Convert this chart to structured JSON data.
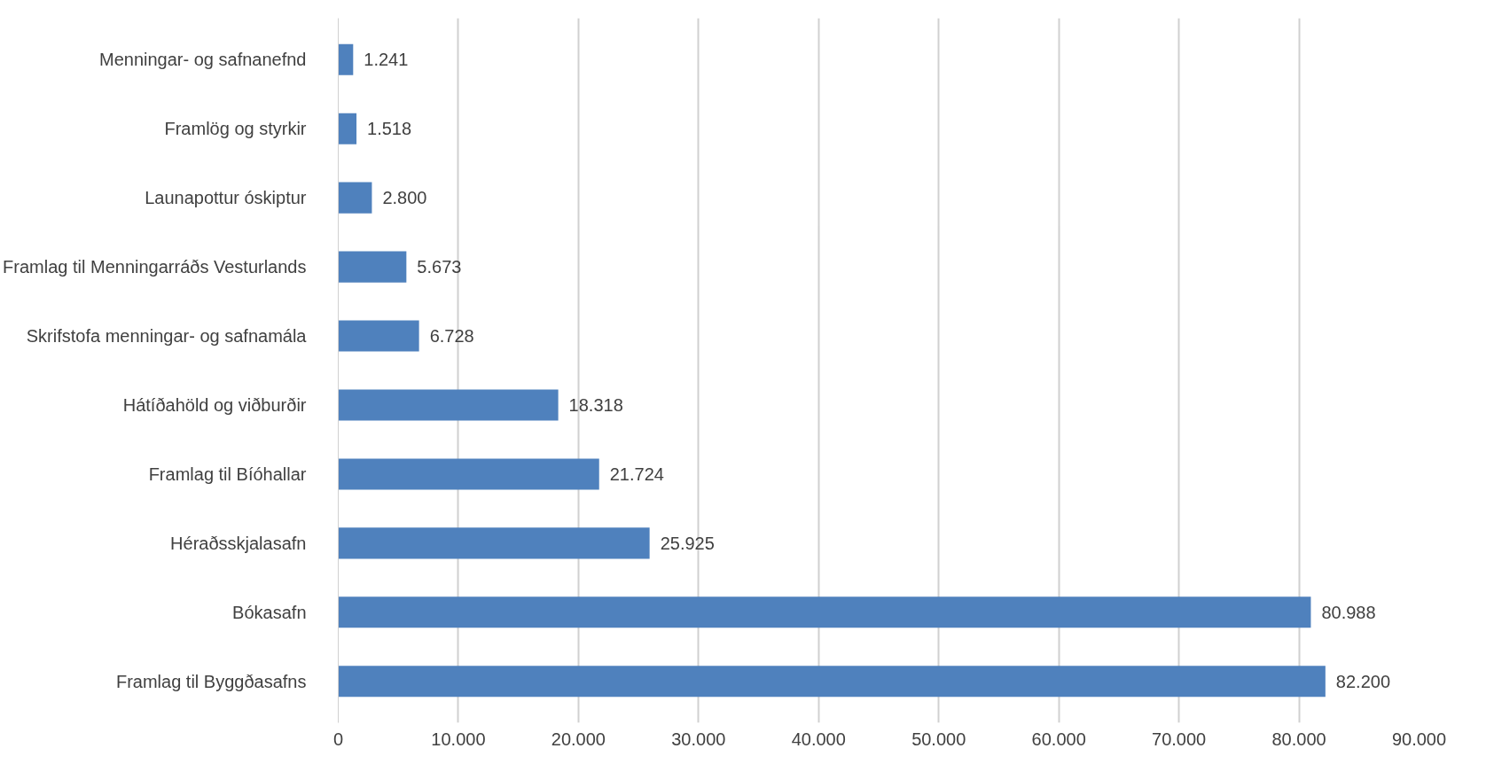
{
  "chart_data": {
    "type": "bar",
    "orientation": "horizontal",
    "categories": [
      "Menningar- og safnanefnd",
      "Framlög og styrkir",
      "Launapottur óskiptur",
      "Framlag til Menningarráðs Vesturlands",
      "Skrifstofa menningar- og safnamála",
      "Hátíðahöld og viðburðir",
      "Framlag til Bíóhallar",
      "Héraðsskjalasafn",
      "Bókasafn",
      "Framlag til Byggðasafns"
    ],
    "values": [
      1241,
      1518,
      2800,
      5673,
      6728,
      18318,
      21724,
      25925,
      80988,
      82200
    ],
    "value_labels": [
      "1.241",
      "1.518",
      "2.800",
      "5.673",
      "6.728",
      "18.318",
      "21.724",
      "25.925",
      "80.988",
      "82.200"
    ],
    "color": "#4f81bd",
    "xlim": [
      0,
      90000
    ],
    "xticks": [
      0,
      {
        "value": 10000,
        "label": "10.000"
      },
      {
        "value": 20000,
        "label": "20.000"
      },
      {
        "value": 30000,
        "label": "30.000"
      },
      {
        "value": 40000,
        "label": "40.000"
      },
      {
        "value": 50000,
        "label": "50.000"
      },
      {
        "value": 60000,
        "label": "60.000"
      },
      {
        "value": 70000,
        "label": "70.000"
      },
      {
        "value": 80000,
        "label": "80.000"
      },
      {
        "value": 90000,
        "label": "90.000"
      }
    ],
    "grid": "x"
  }
}
